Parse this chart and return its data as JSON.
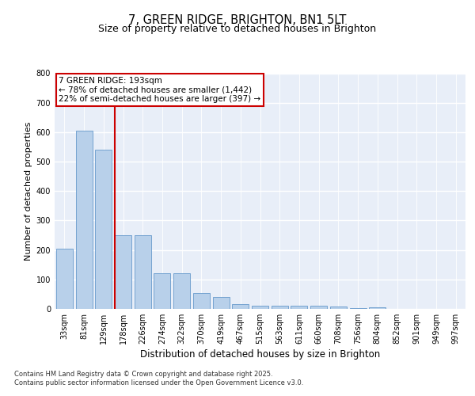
{
  "title": "7, GREEN RIDGE, BRIGHTON, BN1 5LT",
  "subtitle": "Size of property relative to detached houses in Brighton",
  "xlabel": "Distribution of detached houses by size in Brighton",
  "ylabel": "Number of detached properties",
  "categories": [
    "33sqm",
    "81sqm",
    "129sqm",
    "178sqm",
    "226sqm",
    "274sqm",
    "322sqm",
    "370sqm",
    "419sqm",
    "467sqm",
    "515sqm",
    "563sqm",
    "611sqm",
    "660sqm",
    "708sqm",
    "756sqm",
    "804sqm",
    "852sqm",
    "901sqm",
    "949sqm",
    "997sqm"
  ],
  "values": [
    205,
    605,
    540,
    250,
    250,
    120,
    120,
    55,
    40,
    15,
    10,
    10,
    10,
    10,
    8,
    2,
    5,
    0,
    0,
    0,
    0
  ],
  "bar_color": "#b8d0ea",
  "bar_edge_color": "#6699cc",
  "vline_color": "#cc0000",
  "vline_xindex": 3,
  "annotation_line1": "7 GREEN RIDGE: 193sqm",
  "annotation_line2": "← 78% of detached houses are smaller (1,442)",
  "annotation_line3": "22% of semi-detached houses are larger (397) →",
  "annotation_box_edgecolor": "#cc0000",
  "ylim_max": 800,
  "yticks": [
    0,
    100,
    200,
    300,
    400,
    500,
    600,
    700,
    800
  ],
  "plot_bg_color": "#e8eef8",
  "footer_line1": "Contains HM Land Registry data © Crown copyright and database right 2025.",
  "footer_line2": "Contains public sector information licensed under the Open Government Licence v3.0.",
  "title_fontsize": 10.5,
  "subtitle_fontsize": 9,
  "xlabel_fontsize": 8.5,
  "ylabel_fontsize": 8,
  "tick_fontsize": 7,
  "annotation_fontsize": 7.5,
  "footer_fontsize": 6.0
}
